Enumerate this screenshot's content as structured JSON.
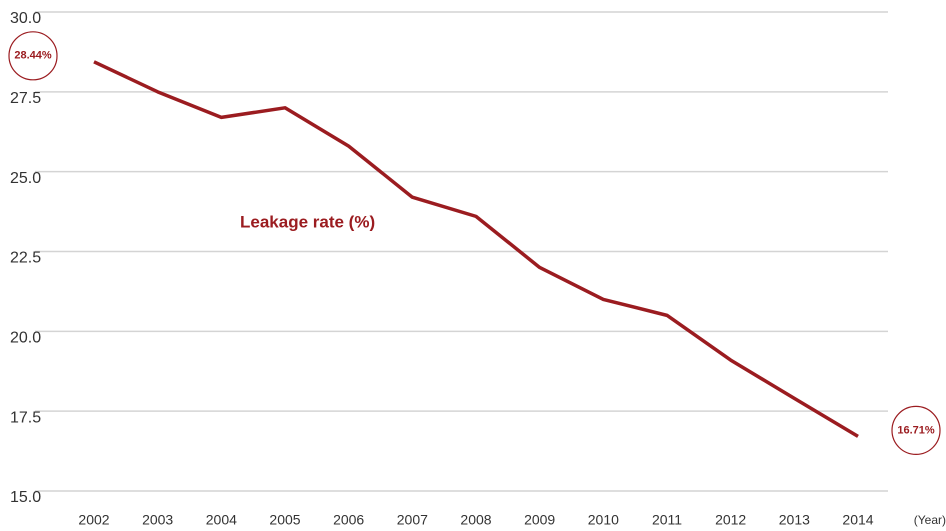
{
  "chart_data": {
    "type": "line",
    "x_label": "(Year)",
    "categories": [
      "2002",
      "2003",
      "2004",
      "2005",
      "2006",
      "2007",
      "2008",
      "2009",
      "2010",
      "2011",
      "2012",
      "2013",
      "2014"
    ],
    "series": [
      {
        "name": "Leakage rate (%)",
        "color": "#9b1c20",
        "values": [
          28.44,
          27.5,
          26.7,
          27.0,
          25.8,
          24.2,
          23.6,
          22.0,
          21.0,
          20.5,
          19.1,
          17.9,
          16.71
        ],
        "value_labels": [
          "28.44%",
          null,
          null,
          null,
          null,
          null,
          null,
          null,
          null,
          null,
          null,
          null,
          "16.71%"
        ]
      }
    ],
    "ylim": [
      15,
      30
    ],
    "yticks": [
      {
        "value": 15,
        "label": "15.0"
      },
      17.5,
      {
        "value": 20,
        "label": "20.0"
      },
      22.5,
      {
        "value": 25,
        "label": "25.0"
      },
      27.5,
      {
        "value": 30,
        "label": "30.0"
      }
    ],
    "grid": true
  }
}
